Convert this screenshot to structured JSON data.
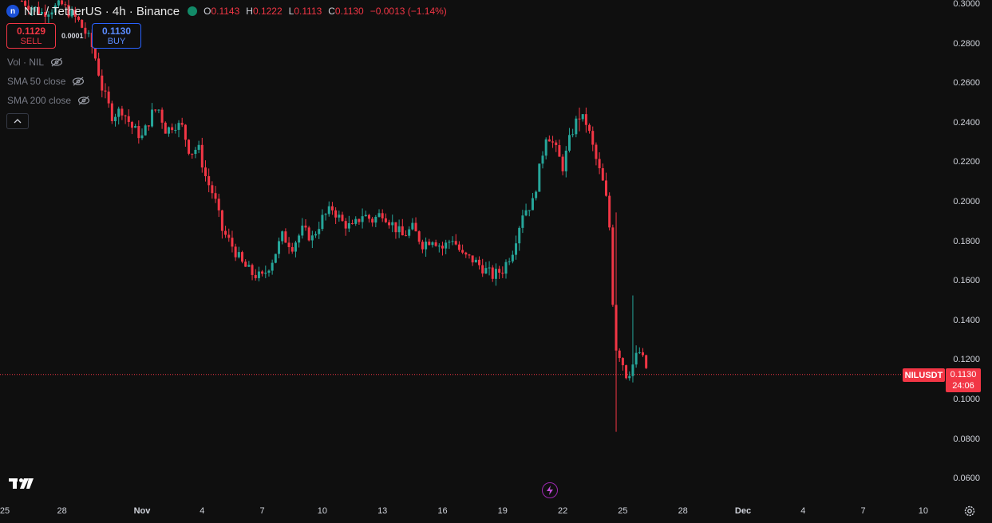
{
  "header": {
    "logo_letter": "n",
    "title": "NIL / TetherUS · 4h · Binance",
    "ohlc": [
      {
        "k": "O",
        "v": "0.1143"
      },
      {
        "k": "H",
        "v": "0.1222"
      },
      {
        "k": "L",
        "v": "0.1113"
      },
      {
        "k": "C",
        "v": "0.1130"
      }
    ],
    "change": "−0.0013 (−1.14%)"
  },
  "trade": {
    "sell_price": "0.1129",
    "sell_label": "SELL",
    "buy_price": "0.1130",
    "buy_label": "BUY",
    "spread": "0.0001"
  },
  "indicators": [
    "Vol · NIL",
    "SMA 50 close",
    "SMA 200 close"
  ],
  "price_scale": {
    "symbol": "NILUSDT",
    "last_price": "0.1130",
    "countdown": "24:06"
  },
  "colors": {
    "up": "#26a69a",
    "down": "#f23645",
    "background": "#0f0f0f",
    "text": "#d1d4dc",
    "accent_sell": "#f23645",
    "accent_buy": "#2962ff"
  },
  "chart_data": {
    "type": "candlestick",
    "title": "NIL / TetherUS · 4h · Binance",
    "interval": "4h",
    "y_ticks": [
      "0.3000",
      "0.2800",
      "0.2600",
      "0.2400",
      "0.2200",
      "0.2000",
      "0.1800",
      "0.1600",
      "0.1400",
      "0.1200",
      "0.1000",
      "0.0800",
      "0.0600"
    ],
    "ylim": [
      0.06,
      0.3
    ],
    "x_ticks": [
      {
        "label": "25",
        "day": -7,
        "bold": false
      },
      {
        "label": "28",
        "day": -4,
        "bold": false
      },
      {
        "label": "Nov",
        "day": 0,
        "bold": true
      },
      {
        "label": "4",
        "day": 3,
        "bold": false
      },
      {
        "label": "7",
        "day": 6,
        "bold": false
      },
      {
        "label": "10",
        "day": 9,
        "bold": false
      },
      {
        "label": "13",
        "day": 12,
        "bold": false
      },
      {
        "label": "16",
        "day": 15,
        "bold": false
      },
      {
        "label": "19",
        "day": 18,
        "bold": false
      },
      {
        "label": "22",
        "day": 21,
        "bold": false
      },
      {
        "label": "25",
        "day": 24,
        "bold": false
      },
      {
        "label": "28",
        "day": 27,
        "bold": false
      },
      {
        "label": "Dec",
        "day": 30,
        "bold": true
      },
      {
        "label": "4",
        "day": 33,
        "bold": false
      },
      {
        "label": "7",
        "day": 36,
        "bold": false
      },
      {
        "label": "10",
        "day": 39,
        "bold": false
      }
    ],
    "last_price": 0.113,
    "grid": false,
    "close_path": [
      [
        -6.0,
        0.302
      ],
      [
        -5.0,
        0.296
      ],
      [
        -4.0,
        0.3
      ],
      [
        -3.2,
        0.292
      ],
      [
        -2.6,
        0.282
      ],
      [
        -2.3,
        0.272
      ],
      [
        -2.0,
        0.258
      ],
      [
        -1.5,
        0.244
      ],
      [
        -1.0,
        0.247
      ],
      [
        -0.5,
        0.238
      ],
      [
        0.0,
        0.233
      ],
      [
        0.5,
        0.245
      ],
      [
        0.8,
        0.248
      ],
      [
        1.2,
        0.236
      ],
      [
        1.6,
        0.24
      ],
      [
        2.0,
        0.238
      ],
      [
        2.4,
        0.225
      ],
      [
        2.8,
        0.228
      ],
      [
        3.2,
        0.212
      ],
      [
        3.6,
        0.203
      ],
      [
        4.0,
        0.186
      ],
      [
        4.5,
        0.178
      ],
      [
        5.0,
        0.169
      ],
      [
        5.5,
        0.164
      ],
      [
        6.0,
        0.162
      ],
      [
        6.5,
        0.171
      ],
      [
        7.0,
        0.183
      ],
      [
        7.5,
        0.178
      ],
      [
        8.0,
        0.186
      ],
      [
        8.5,
        0.182
      ],
      [
        9.0,
        0.192
      ],
      [
        9.5,
        0.197
      ],
      [
        10.0,
        0.19
      ],
      [
        10.5,
        0.187
      ],
      [
        11.0,
        0.194
      ],
      [
        11.5,
        0.191
      ],
      [
        12.0,
        0.195
      ],
      [
        12.5,
        0.189
      ],
      [
        13.0,
        0.183
      ],
      [
        13.5,
        0.187
      ],
      [
        14.0,
        0.179
      ],
      [
        14.5,
        0.182
      ],
      [
        15.0,
        0.177
      ],
      [
        15.5,
        0.182
      ],
      [
        16.0,
        0.173
      ],
      [
        16.5,
        0.171
      ],
      [
        17.0,
        0.167
      ],
      [
        17.5,
        0.163
      ],
      [
        18.0,
        0.166
      ],
      [
        18.5,
        0.176
      ],
      [
        19.0,
        0.195
      ],
      [
        19.5,
        0.2
      ],
      [
        19.9,
        0.22
      ],
      [
        20.2,
        0.236
      ],
      [
        20.6,
        0.228
      ],
      [
        21.0,
        0.218
      ],
      [
        21.4,
        0.234
      ],
      [
        21.8,
        0.244
      ],
      [
        22.2,
        0.24
      ],
      [
        22.6,
        0.224
      ],
      [
        23.0,
        0.21
      ],
      [
        23.3,
        0.195
      ],
      [
        23.6,
        0.128
      ],
      [
        23.9,
        0.122
      ],
      [
        24.2,
        0.112
      ],
      [
        24.5,
        0.118
      ],
      [
        24.8,
        0.125
      ],
      [
        25.1,
        0.118
      ],
      [
        25.3,
        0.113
      ]
    ],
    "notable_wicks": [
      {
        "day": 23.6,
        "high": 0.195,
        "low": 0.084
      },
      {
        "day": 24.5,
        "high": 0.153,
        "low": 0.109
      },
      {
        "day": 21.8,
        "high": 0.248,
        "low": 0.236
      }
    ]
  }
}
